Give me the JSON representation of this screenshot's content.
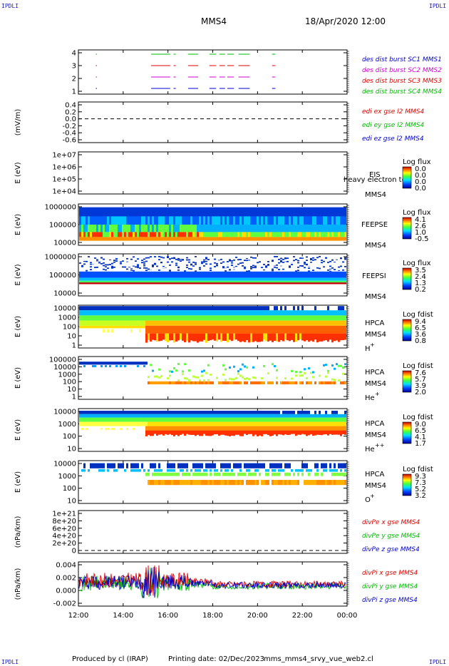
{
  "header": {
    "corner_label": "IPDLI",
    "spacecraft": "MMS4",
    "datetime": "18/Apr/2020 12:00"
  },
  "footer": {
    "produced_by": "Produced by cl (IRAP)",
    "printing_date": "Printing date: 02/Dec/2023",
    "filename": "mms_mms4_srvy_vue_web2.cl"
  },
  "colors": {
    "mms1": "#0000cc",
    "mms2": "#cc00cc",
    "mms3": "#dd0000",
    "mms4": "#00bb00",
    "x_comp": "#dd0000",
    "y_comp": "#00bb00",
    "z_comp": "#0000cc"
  },
  "chart_data": [
    {
      "type": "scatter",
      "panel": "burst",
      "y_ticks": [
        "4",
        "3",
        "2",
        "1"
      ],
      "ylim": [
        0.5,
        4.5
      ],
      "legend": [
        "des dist burst SC1 MMS1",
        "des dist burst SC2 MMS2",
        "des dist burst SC3 MMS3",
        "des dist burst SC4 MMS4"
      ],
      "x_hours": [
        12,
        24
      ],
      "intervals": [
        [
          15.25,
          16.1
        ],
        [
          16.25,
          16.35
        ],
        [
          16.9,
          17.35
        ],
        [
          17.85,
          18.15
        ],
        [
          18.3,
          18.55
        ],
        [
          18.65,
          18.95
        ],
        [
          19.15,
          19.65
        ],
        [
          20.65,
          20.8
        ]
      ],
      "sc1_isolated_point": 12.8
    },
    {
      "type": "line",
      "panel": "edi",
      "ylabel": "(mV/m)",
      "y_ticks": [
        "0.4",
        "0.2",
        "0.0",
        "-0.2",
        "-0.4",
        "-0.6"
      ],
      "ylim": [
        -0.6,
        0.4
      ],
      "legend": [
        "edi ex gse l2 MMS4",
        "edi ey gse l2 MMS4",
        "edi ez gse l2 MMS4"
      ],
      "dashed_zero": true
    },
    {
      "type": "heatmap",
      "panel": "eis",
      "ylabel": "E (eV)",
      "y_ticks": [
        "1e+07",
        "1e+06",
        "1e+05",
        "1e+04"
      ],
      "instrument": "EIS",
      "overlay_text": "heavy electron to",
      "spacecraft": "MMS4",
      "colorbar_title": "Log flux",
      "colorbar_ticks": [
        "0.0",
        "0.0",
        "0.0",
        "0.0"
      ]
    },
    {
      "type": "heatmap",
      "panel": "feeps_e",
      "ylabel": "E (eV)",
      "y_ticks": [
        "1000000",
        "100000",
        "10000"
      ],
      "instrument": "FEEPSE",
      "spacecraft": "MMS4",
      "colorbar_title": "Log flux",
      "colorbar_ticks": [
        "4.1",
        "2.6",
        "1.0",
        "-0.5"
      ]
    },
    {
      "type": "heatmap",
      "panel": "feeps_i",
      "ylabel": "E (eV)",
      "y_ticks": [
        "1000000",
        "100000",
        "10000"
      ],
      "instrument": "FEEPSI",
      "spacecraft": "MMS4",
      "colorbar_title": "Log flux",
      "colorbar_ticks": [
        "3.5",
        "2.4",
        "1.3",
        "0.2"
      ]
    },
    {
      "type": "heatmap",
      "panel": "hpca_h",
      "ylabel": "E (eV)",
      "y_ticks": [
        "10000",
        "1000",
        "100",
        "10",
        "1"
      ],
      "instrument": "HPCA",
      "spacecraft": "MMS4",
      "species": "H",
      "species_sup": "+",
      "colorbar_title": "Log fdist",
      "colorbar_ticks": [
        "9.4",
        "6.5",
        "3.6",
        "0.8"
      ]
    },
    {
      "type": "heatmap",
      "panel": "hpca_he",
      "ylabel": "E (eV)",
      "y_ticks": [
        "100000",
        "10000",
        "1000",
        "100",
        "10",
        "1"
      ],
      "instrument": "HPCA",
      "spacecraft": "MMS4",
      "species": "He",
      "species_sup": "+",
      "colorbar_title": "Log fdist",
      "colorbar_ticks": [
        "7.6",
        "5.7",
        "3.9",
        "2.0"
      ]
    },
    {
      "type": "heatmap",
      "panel": "hpca_hepp",
      "ylabel": "E (eV)",
      "y_ticks": [
        "10000",
        "1000",
        "100",
        "10"
      ],
      "instrument": "HPCA",
      "spacecraft": "MMS4",
      "species": "He",
      "species_sup": "++",
      "colorbar_title": "Log fdist",
      "colorbar_ticks": [
        "9.0",
        "6.5",
        "4.1",
        "1.7"
      ]
    },
    {
      "type": "heatmap",
      "panel": "hpca_o",
      "ylabel": "E (eV)",
      "y_ticks": [
        "10000",
        "1000",
        "100",
        "10"
      ],
      "instrument": "HPCA",
      "spacecraft": "MMS4",
      "species": "O",
      "species_sup": "+",
      "colorbar_title": "Log fdist",
      "colorbar_ticks": [
        "9.3",
        "7.3",
        "5.2",
        "3.2"
      ]
    },
    {
      "type": "line",
      "panel": "divpe",
      "ylabel": "(nPa/km)",
      "y_ticks": [
        "1e+21",
        "8e+20",
        "6e+20",
        "4e+20",
        "2e+20",
        "0"
      ],
      "ylim": [
        0,
        1e+21
      ],
      "legend": [
        "divPe x gse MMS4",
        "divPe y gse MMS4",
        "divPe z gse MMS4"
      ],
      "dashed_zero": true
    },
    {
      "type": "line",
      "panel": "divpi",
      "ylabel": "(nPa/km)",
      "y_ticks": [
        "0.004",
        "0.002",
        "0.000",
        "-0.002"
      ],
      "ylim": [
        -0.003,
        0.004
      ],
      "legend": [
        "divPi x gse MMS4",
        "divPi y gse MMS4",
        "divPi z gse MMS4"
      ],
      "x_ticks": [
        "12:00",
        "14:00",
        "16:00",
        "18:00",
        "20:00",
        "22:00",
        "00:00"
      ]
    }
  ]
}
